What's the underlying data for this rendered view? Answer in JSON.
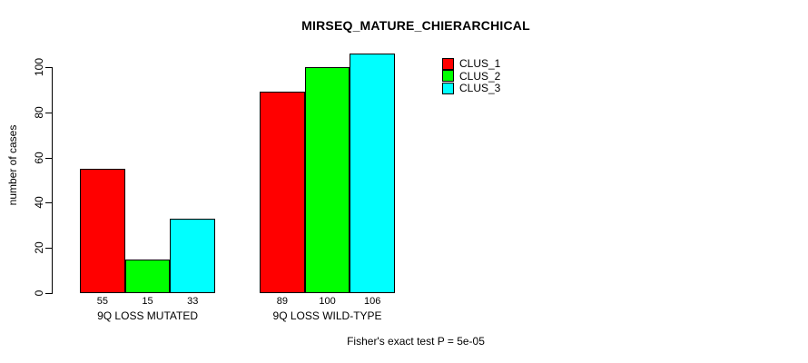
{
  "chart_data": {
    "type": "bar",
    "title": "MIRSEQ_MATURE_CHIERARCHICAL",
    "xlabel": "",
    "ylabel": "number of cases",
    "categories": [
      "9Q LOSS MUTATED",
      "9Q LOSS WILD-TYPE"
    ],
    "series": [
      {
        "name": "CLUS_1",
        "color": "#ff0000",
        "values": [
          55,
          89
        ]
      },
      {
        "name": "CLUS_2",
        "color": "#00ff00",
        "values": [
          15,
          100
        ]
      },
      {
        "name": "CLUS_3",
        "color": "#00ffff",
        "values": [
          33,
          106
        ]
      }
    ],
    "bar_value_labels": [
      [
        55,
        15,
        33
      ],
      [
        89,
        100,
        106
      ]
    ],
    "ylim": [
      0,
      100
    ],
    "yticks": [
      0,
      20,
      40,
      60,
      80,
      100
    ],
    "grid": false,
    "legend_position": "top-right",
    "annotation": "Fisher's exact test P = 5e-05"
  },
  "colors": {
    "background": "#ffffff",
    "axis": "#000000",
    "clus_1": "#ff0000",
    "clus_2": "#00ff00",
    "clus_3": "#00ffff"
  }
}
